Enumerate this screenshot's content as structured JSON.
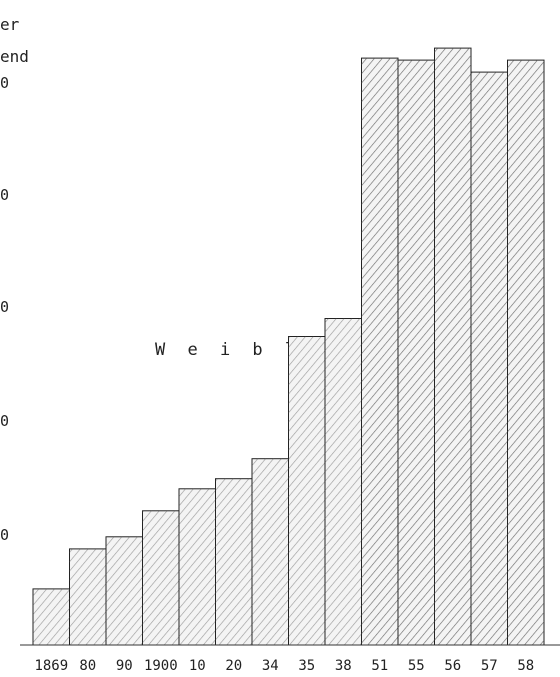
{
  "chart_data": {
    "type": "bar",
    "title_lines": [
      "er",
      "end"
    ],
    "series_label": "W e i b l i c h",
    "y_tick_labels": [
      "0",
      "0",
      "0",
      "0",
      "0"
    ],
    "categories": [
      "1869",
      "80",
      "90",
      "1900",
      "10",
      "20",
      "34",
      "35",
      "38",
      "51",
      "55",
      "56",
      "57",
      "58"
    ],
    "series": [
      {
        "values": [
          28,
          48,
          54,
          67,
          78,
          83,
          93,
          154,
          163,
          293,
          292,
          298,
          286,
          292
        ]
      }
    ],
    "ylim": [
      0,
      322
    ],
    "grid": false,
    "legend": "none",
    "bar_fill": "hatched"
  },
  "colors": {
    "ink": "#222222",
    "bar_fill": "#f4f4f4",
    "hatch": "#555555",
    "background": "#ffffff"
  }
}
